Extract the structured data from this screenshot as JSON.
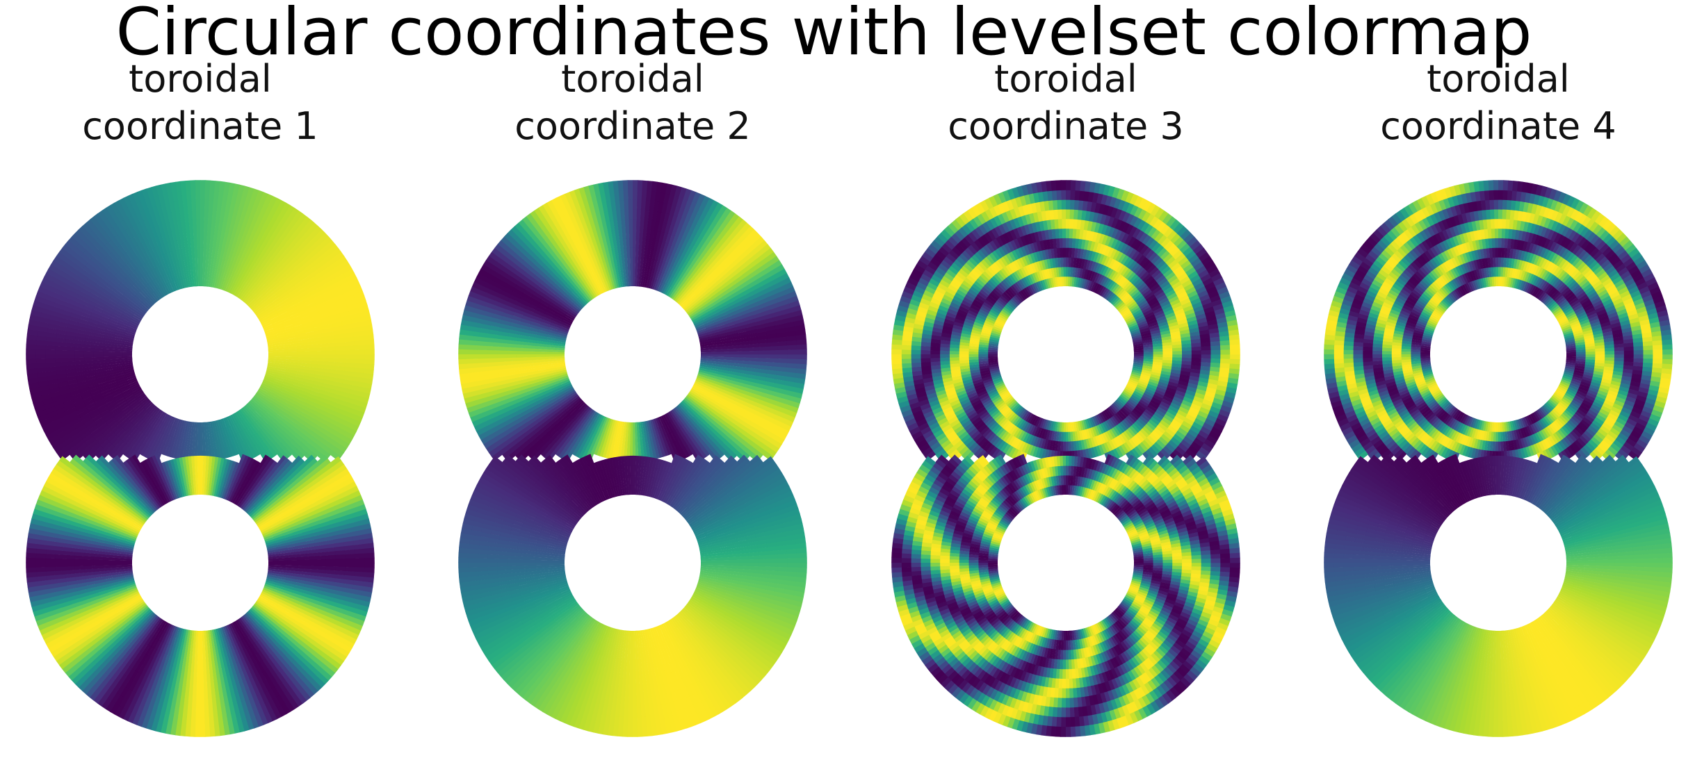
{
  "chart_data": {
    "type": "scatter",
    "title": "Circular coordinates with levelset colormap",
    "colormap": "viridis",
    "colormap_type": "levelset (cyclic)",
    "dataset": "figure-eight (two annuli joined)",
    "axes_visible": false,
    "grid": false,
    "legend": "none",
    "panels": [
      {
        "title_line1": "toroidal",
        "title_line2": "coordinate 1",
        "top_ring_winding": 1,
        "bottom_ring_winding": 6,
        "top_ring_offset_deg": 200,
        "bottom_ring_offset_deg": 0,
        "top_twist": 0,
        "bottom_twist": 0
      },
      {
        "title_line1": "toroidal",
        "title_line2": "coordinate 2",
        "top_ring_winding": 5,
        "bottom_ring_winding": 1,
        "top_ring_offset_deg": 40,
        "bottom_ring_offset_deg": 110,
        "top_twist": 0,
        "bottom_twist": 0
      },
      {
        "title_line1": "toroidal",
        "title_line2": "coordinate 3",
        "top_ring_winding": 6,
        "bottom_ring_winding": 8,
        "top_ring_offset_deg": 0,
        "bottom_ring_offset_deg": 30,
        "top_twist": 1.6,
        "bottom_twist": -1.2
      },
      {
        "title_line1": "toroidal",
        "title_line2": "coordinate 4",
        "top_ring_winding": 6,
        "bottom_ring_winding": 1,
        "top_ring_offset_deg": 20,
        "bottom_ring_offset_deg": 120,
        "top_twist": -1.8,
        "bottom_twist": 0
      }
    ],
    "viridis_stops": [
      "#440154",
      "#472d7b",
      "#3b528b",
      "#2c728e",
      "#21918c",
      "#28ae80",
      "#5ec962",
      "#addc30",
      "#fde725"
    ]
  }
}
